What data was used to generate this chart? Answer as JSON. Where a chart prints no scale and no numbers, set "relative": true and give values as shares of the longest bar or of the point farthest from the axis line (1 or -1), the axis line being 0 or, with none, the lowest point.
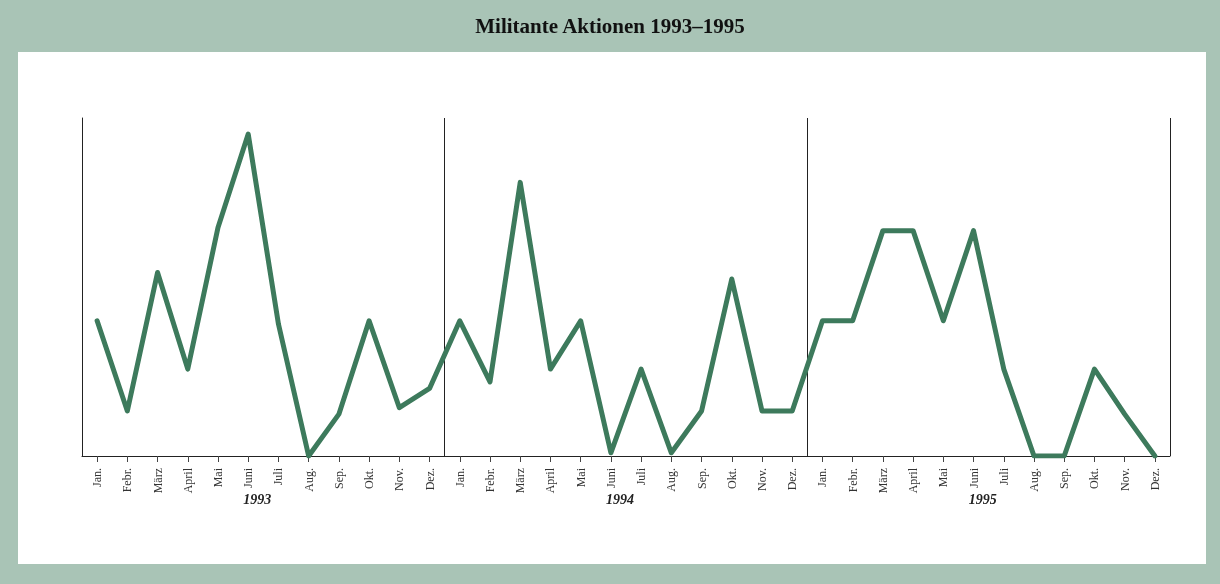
{
  "chart_data": {
    "type": "line",
    "title": "Militante Aktionen 1993–1995",
    "relative": true,
    "marker": "none",
    "line_style": "solid",
    "categories": [
      "Jan.",
      "Febr.",
      "März",
      "April",
      "Mai",
      "Juni",
      "Juli",
      "Aug.",
      "Sep.",
      "Okt.",
      "Nov.",
      "Dez.",
      "Jan.",
      "Febr.",
      "März",
      "April",
      "Mai",
      "Juni",
      "Juli",
      "Aug.",
      "Sep.",
      "Okt.",
      "Nov.",
      "Dez.",
      "Jan.",
      "Febr.",
      "März",
      "April",
      "Mai",
      "Juni",
      "Juli",
      "Aug.",
      "Sep.",
      "Okt.",
      "Nov.",
      "Dez."
    ],
    "series": [
      {
        "color": "#3d7a5c",
        "values": [
          0.42,
          0.14,
          0.57,
          0.27,
          0.71,
          1,
          0.41,
          0,
          0.13,
          0.42,
          0.15,
          0.21,
          0.42,
          0.23,
          0.85,
          0.27,
          0.42,
          0.01,
          0.27,
          0.01,
          0.14,
          0.55,
          0.14,
          0.14,
          0.42,
          0.42,
          0.7,
          0.7,
          0.42,
          0.7,
          0.27,
          0,
          0,
          0.27,
          0.13,
          0
        ]
      }
    ],
    "annotations": [
      "1993",
      "1994",
      "1995"
    ]
  }
}
